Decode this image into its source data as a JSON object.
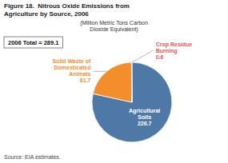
{
  "chart_data": {
    "type": "pie",
    "title": "Figure 18.  Nitrous Oxide Emissions from\nAgriculture by Source, 2006",
    "subtitle": "(Million Metric Tons Carbon\nDioxide Equivalent)",
    "categories": [
      "Agricultural Soils",
      "Solid Waste of Domesticated Animals",
      "Crop Residue Burning"
    ],
    "values": [
      226.7,
      61.7,
      0.6
    ],
    "data_labels": true,
    "annotations": [
      "2006 Total = 289.1",
      "Source: EIA estimates."
    ]
  }
}
